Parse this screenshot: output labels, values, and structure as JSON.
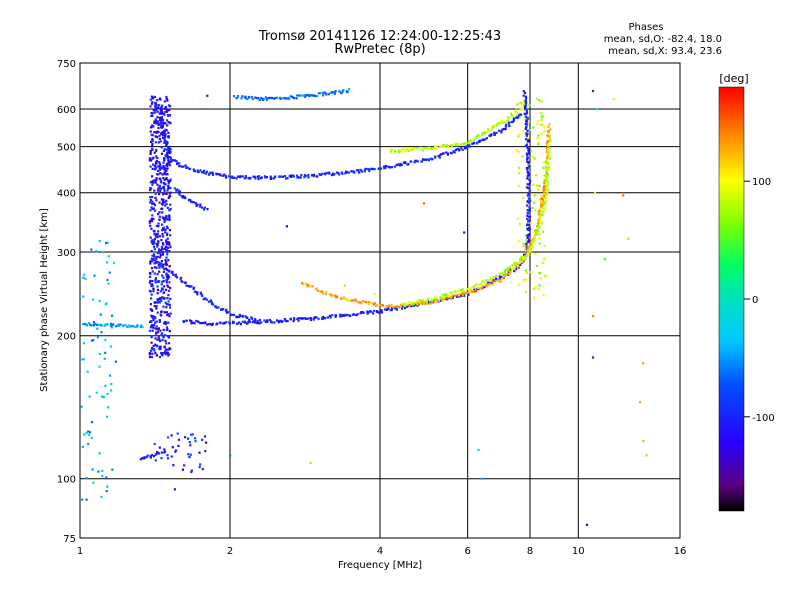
{
  "chart_data": {
    "type": "scatter",
    "title": "Tromsø 20141126 12:24:00-12:25:43",
    "subtitle": "RwPretec (8p)",
    "xlabel": "Frequency [MHz]",
    "ylabel": "Stationary phase Virtual Height [km]",
    "xscale": "log",
    "yscale": "log",
    "xlim": [
      1,
      16
    ],
    "ylim": [
      75,
      750
    ],
    "xticks": [
      1,
      2,
      4,
      6,
      8,
      10,
      16
    ],
    "yticks": [
      75,
      100,
      200,
      300,
      400,
      500,
      600,
      750
    ],
    "grid": true,
    "stats": {
      "heading": "Phases",
      "line_o": "mean, sd,O: -82.4, 18.0",
      "line_x": "mean, sd,X: 93.4, 23.6"
    },
    "colorbar": {
      "label": "[deg]",
      "range": [
        -180,
        180
      ],
      "ticks": [
        "100",
        "0",
        "-100"
      ],
      "tick_values": [
        100,
        0,
        -100
      ],
      "colormap": "rainbow"
    },
    "traces": [
      {
        "x": [
          1.4,
          1.4,
          1.45,
          1.45,
          1.5,
          1.5
        ],
        "y": [
          640,
          620,
          600,
          560,
          500,
          450
        ],
        "phase": -110
      },
      {
        "x": [
          1.52,
          1.6,
          1.8,
          2.0,
          2.4,
          3.0,
          4.0,
          5.0,
          6.0,
          7.0,
          7.7
        ],
        "y": [
          470,
          455,
          440,
          432,
          430,
          435,
          450,
          470,
          500,
          540,
          590
        ],
        "phase": -100
      },
      {
        "x": [
          4.2,
          5.0,
          6.0,
          7.0,
          7.8
        ],
        "y": [
          490,
          495,
          510,
          560,
          610
        ],
        "phase": 80
      },
      {
        "x": [
          7.8,
          7.85,
          7.9,
          7.95,
          7.95,
          7.9,
          7.6,
          7.0,
          6.0,
          5.0,
          4.0,
          3.0,
          2.2,
          1.8,
          1.6
        ],
        "y": [
          650,
          600,
          500,
          420,
          350,
          300,
          280,
          265,
          245,
          235,
          225,
          218,
          213,
          212,
          215
        ],
        "phase": -105
      },
      {
        "x": [
          2.8,
          3.2,
          3.6,
          4.0,
          4.4,
          5.0,
          6.0,
          7.0,
          7.8,
          8.3,
          8.6,
          8.75
        ],
        "y": [
          258,
          243,
          236,
          232,
          231,
          235,
          246,
          262,
          290,
          340,
          430,
          560
        ],
        "phase": 130
      },
      {
        "x": [
          4.4,
          5.0,
          6.0,
          7.0,
          8.0,
          8.6,
          8.75
        ],
        "y": [
          232,
          238,
          250,
          270,
          300,
          380,
          520
        ],
        "phase": 80
      },
      {
        "x": [
          1.0,
          1.1,
          1.2,
          1.3,
          1.35
        ],
        "y": [
          212,
          211,
          210,
          209,
          208
        ],
        "phase": -45
      },
      {
        "x": [
          1.4,
          1.6,
          1.8,
          2.0,
          2.3
        ],
        "y": [
          290,
          262,
          238,
          222,
          215
        ],
        "phase": -100
      },
      {
        "x": [
          2.05,
          2.3,
          2.6,
          3.0,
          3.3,
          3.5
        ],
        "y": [
          636,
          630,
          634,
          643,
          652,
          657
        ],
        "phase": -65
      },
      {
        "x": [
          1.55,
          1.6,
          1.7,
          1.8
        ],
        "y": [
          410,
          395,
          380,
          368
        ],
        "phase": -100
      },
      {
        "x": [
          1.32,
          1.4,
          1.5
        ],
        "y": [
          110,
          112,
          115
        ],
        "phase": -100
      }
    ],
    "clusters": [
      {
        "x_range": [
          1.38,
          1.52
        ],
        "y_range": [
          180,
          640
        ],
        "phase": -110,
        "count": 650
      },
      {
        "x_range": [
          1.0,
          1.18
        ],
        "y_range": [
          90,
          320
        ],
        "phase": -40,
        "count": 80
      },
      {
        "x_range": [
          7.5,
          8.6
        ],
        "y_range": [
          240,
          640
        ],
        "phase": 85,
        "count": 120
      },
      {
        "x_range": [
          1.4,
          1.8
        ],
        "y_range": [
          103,
          125
        ],
        "phase": -95,
        "count": 40
      }
    ],
    "scattered": [
      {
        "x": 10.7,
        "y": 655,
        "phase": -100
      },
      {
        "x": 10.9,
        "y": 600,
        "phase": 30
      },
      {
        "x": 11.8,
        "y": 630,
        "phase": 90
      },
      {
        "x": 10.8,
        "y": 400,
        "phase": 110
      },
      {
        "x": 12.3,
        "y": 395,
        "phase": 150
      },
      {
        "x": 12.6,
        "y": 320,
        "phase": 120
      },
      {
        "x": 11.3,
        "y": 290,
        "phase": 40
      },
      {
        "x": 10.7,
        "y": 220,
        "phase": 140
      },
      {
        "x": 10.7,
        "y": 180,
        "phase": -110
      },
      {
        "x": 13.5,
        "y": 175,
        "phase": 130
      },
      {
        "x": 13.3,
        "y": 145,
        "phase": 130
      },
      {
        "x": 13.5,
        "y": 120,
        "phase": 125
      },
      {
        "x": 13.7,
        "y": 112,
        "phase": 125
      },
      {
        "x": 6.3,
        "y": 115,
        "phase": -20
      },
      {
        "x": 6.4,
        "y": 100,
        "phase": -40
      },
      {
        "x": 10.4,
        "y": 80,
        "phase": -150
      },
      {
        "x": 4.9,
        "y": 380,
        "phase": 150
      },
      {
        "x": 5.9,
        "y": 330,
        "phase": -110
      },
      {
        "x": 2.6,
        "y": 340,
        "phase": -150
      },
      {
        "x": 3.4,
        "y": 255,
        "phase": 120
      },
      {
        "x": 2.0,
        "y": 112,
        "phase": -60
      },
      {
        "x": 2.9,
        "y": 108,
        "phase": 120
      },
      {
        "x": 1.55,
        "y": 95,
        "phase": -110
      },
      {
        "x": 3.9,
        "y": 245,
        "phase": 90
      },
      {
        "x": 1.8,
        "y": 640,
        "phase": -110
      }
    ]
  }
}
